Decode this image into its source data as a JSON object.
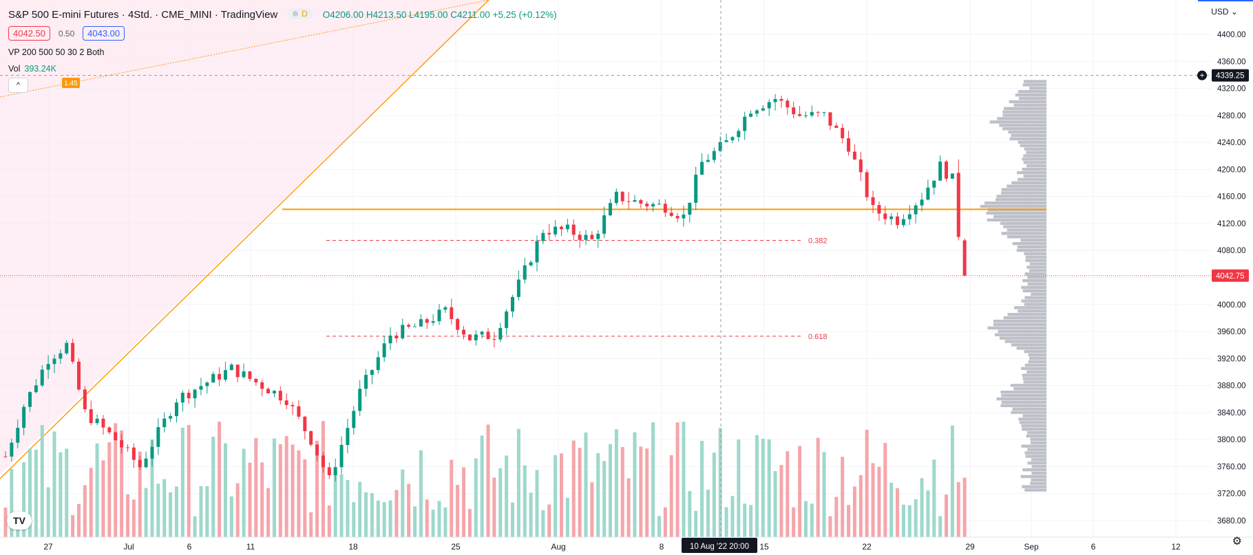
{
  "legend": {
    "title": "S&P 500 E-mini Futures · 4Std. · CME_MINI · TradingView",
    "interval_badge": "D",
    "ohlc": {
      "o_label": "O",
      "o": "4206.00",
      "h_label": "H",
      "h": "4213.50",
      "l_label": "L",
      "l": "4195.00",
      "c_label": "C",
      "c": "4211.00",
      "change": "+5.25 (+0.12%)"
    },
    "sell_price": "4042.50",
    "spread": "0.50",
    "buy_price": "4043.00",
    "vp_label": "VP 200 500 50 30 2 Both",
    "vol_label": "Vol",
    "vol_value": "393.24K",
    "collapse_icon": "^"
  },
  "axis": {
    "currency": "USD",
    "crosshair_price": "4339.25",
    "last_price": "4042.75",
    "crosshair_time": "10 Aug '22   20:00"
  },
  "fib": {
    "level_382": "0.382",
    "level_618": "0.618",
    "badge": "1.45"
  },
  "logo": "TV",
  "settings_icon": "gear-icon",
  "chart_data": {
    "type": "candlestick",
    "title": "S&P 500 E-mini Futures",
    "timeframe": "4h",
    "y_ticks": [
      4400,
      4360,
      4320,
      4280,
      4240,
      4200,
      4160,
      4120,
      4080,
      4040,
      4000,
      3960,
      3920,
      3880,
      3840,
      3800,
      3760,
      3720,
      3680
    ],
    "ylim": [
      3660,
      4440
    ],
    "x_tick_labels": [
      "27",
      "Jul",
      "6",
      "11",
      "18",
      "25",
      "Aug",
      "8",
      "15",
      "22",
      "29",
      "Sep",
      "6",
      "12"
    ],
    "horizontal_level": 4141,
    "fib_382_price": 4095,
    "fib_618_price": 3953,
    "last_price": 4042.75,
    "anchors": [
      [
        0,
        3775
      ],
      [
        3,
        3850
      ],
      [
        7,
        3920
      ],
      [
        10,
        3940
      ],
      [
        13,
        3840
      ],
      [
        18,
        3800
      ],
      [
        22,
        3760
      ],
      [
        28,
        3860
      ],
      [
        32,
        3880
      ],
      [
        37,
        3905
      ],
      [
        42,
        3880
      ],
      [
        46,
        3860
      ],
      [
        50,
        3800
      ],
      [
        53,
        3740
      ],
      [
        58,
        3870
      ],
      [
        63,
        3955
      ],
      [
        68,
        3970
      ],
      [
        72,
        3990
      ],
      [
        76,
        3950
      ],
      [
        80,
        3955
      ],
      [
        84,
        4030
      ],
      [
        88,
        4110
      ],
      [
        92,
        4110
      ],
      [
        96,
        4095
      ],
      [
        100,
        4160
      ],
      [
        104,
        4150
      ],
      [
        108,
        4145
      ],
      [
        111,
        4130
      ],
      [
        114,
        4210
      ],
      [
        118,
        4240
      ],
      [
        122,
        4290
      ],
      [
        126,
        4305
      ],
      [
        130,
        4280
      ],
      [
        134,
        4280
      ],
      [
        138,
        4235
      ],
      [
        142,
        4140
      ],
      [
        146,
        4125
      ],
      [
        150,
        4160
      ],
      [
        153,
        4205
      ],
      [
        155,
        4185
      ],
      [
        156,
        4090
      ],
      [
        157,
        4042
      ]
    ],
    "colors": {
      "up": "#089981",
      "down": "#f23645",
      "vol_up": "#9ed8cc",
      "vol_down": "#f5a6ab",
      "profile": "#b2b5be",
      "level": "#ff9800"
    }
  }
}
